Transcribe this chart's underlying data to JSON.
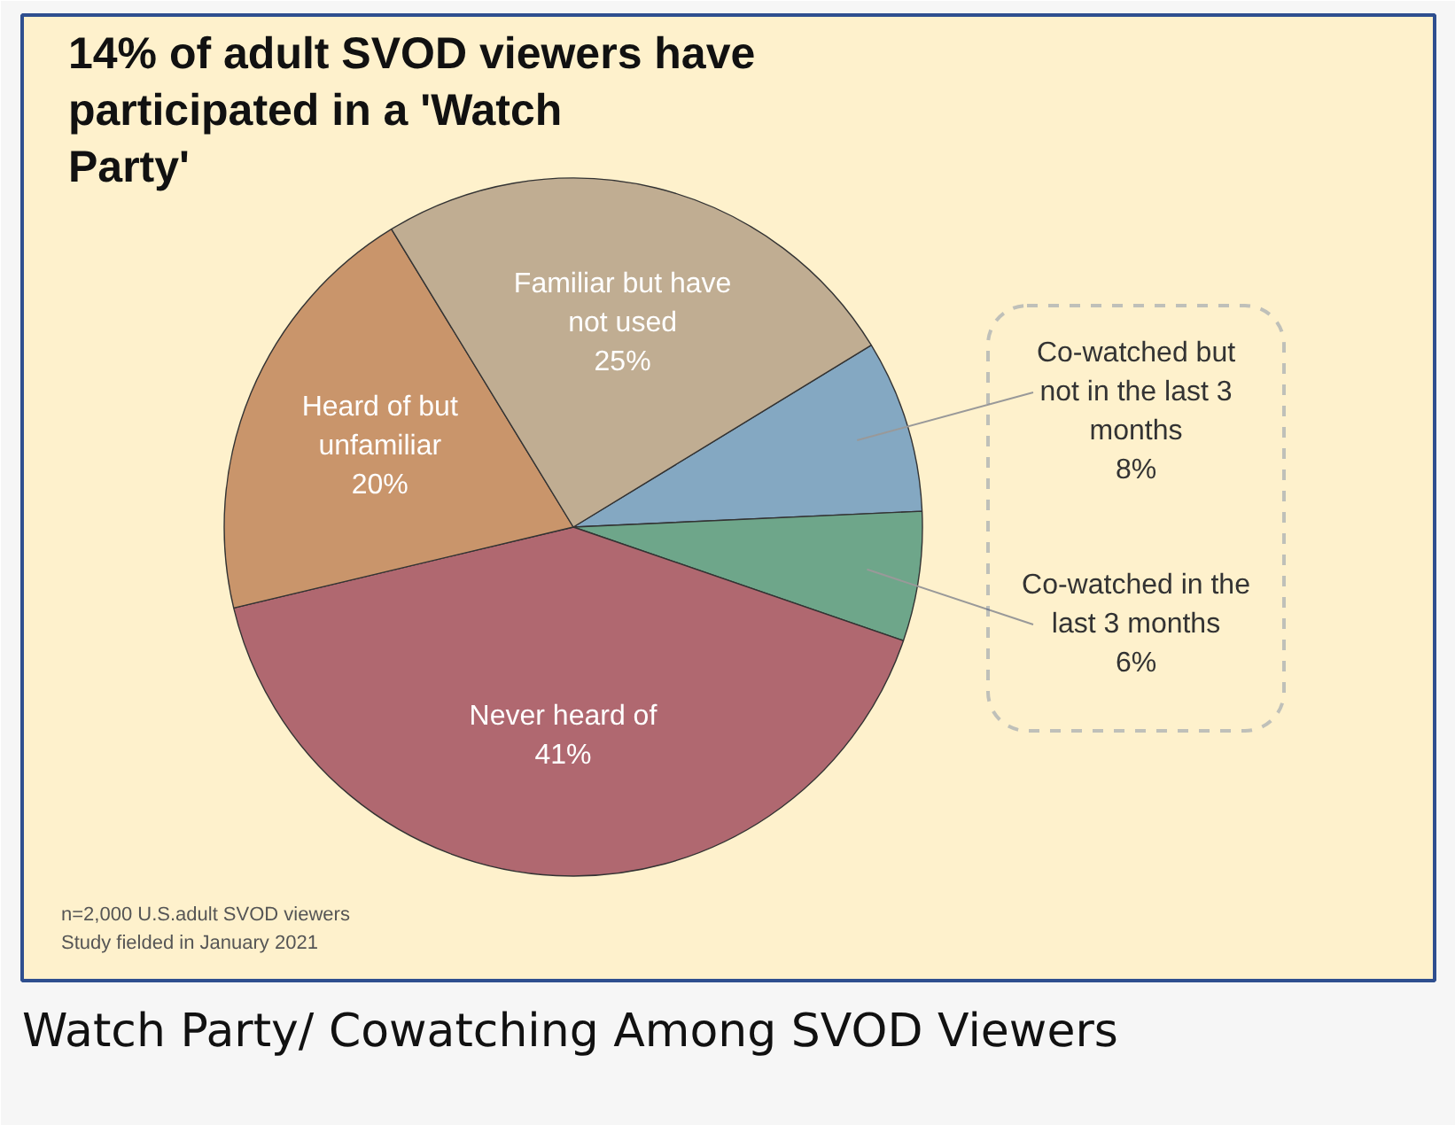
{
  "chart_data": {
    "type": "pie",
    "title": "14% of adult SVOD viewers have participated in a 'Watch Party'",
    "categories": [
      "Co-watched but not in the last 3 months",
      "Co-watched in the last 3 months",
      "Never heard of",
      "Heard of but unfamiliar",
      "Familiar but have not used"
    ],
    "values": [
      8,
      6,
      41,
      20,
      25
    ],
    "value_labels": [
      "8%",
      "6%",
      "41%",
      "20%",
      "25%"
    ],
    "colors": [
      "#84a8c2",
      "#6ea68a",
      "#b06870",
      "#c9956b",
      "#c0ad92"
    ],
    "annotations": [
      "n=2,000 U.S.adult SVOD viewers",
      "Study fielded in January 2021",
      "Watch Party/ Cowatching Among SVOD Viewers"
    ]
  }
}
